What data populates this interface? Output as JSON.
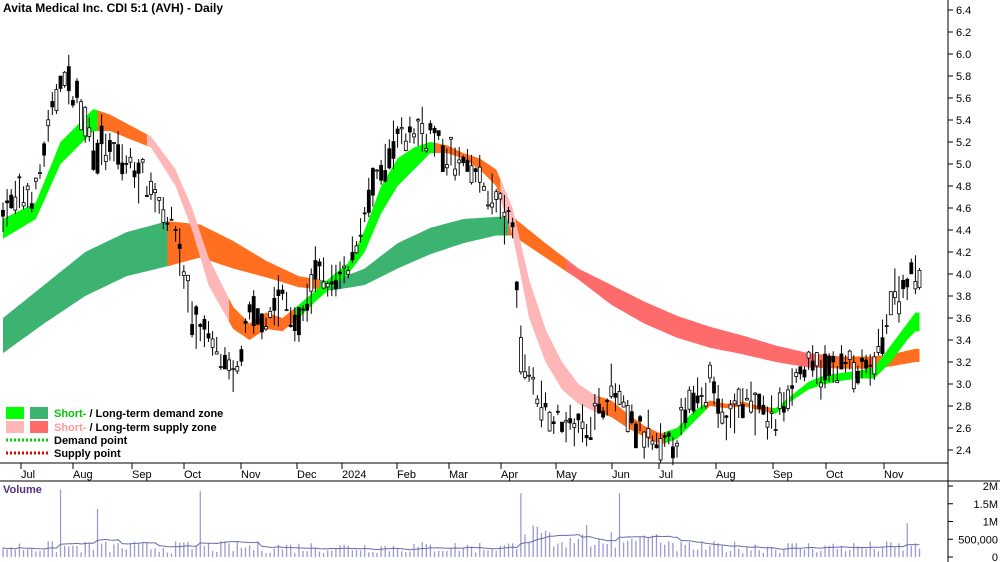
{
  "chart_data": {
    "type": "candlestick",
    "title": "Avita Medical Inc. CDI 5:1 (AVH) - Daily",
    "x_tick_labels": [
      "Jul",
      "Aug",
      "Sep",
      "Oct",
      "Nov",
      "Dec",
      "2024",
      "Feb",
      "Mar",
      "Apr",
      "May",
      "Jun",
      "Jul",
      "Aug",
      "Sep",
      "Oct",
      "Nov"
    ],
    "y_tick_labels": [
      "2.4",
      "2.6",
      "2.8",
      "3.0",
      "3.2",
      "3.4",
      "3.6",
      "3.8",
      "4.0",
      "4.2",
      "4.4",
      "4.6",
      "4.8",
      "5.0",
      "5.2",
      "5.4",
      "5.6",
      "5.8",
      "6.0",
      "6.2",
      "6.4"
    ],
    "ylim": [
      2.25,
      6.5
    ],
    "price_path": [
      {
        "i": 0,
        "p": 4.6
      },
      {
        "i": 8,
        "p": 4.75
      },
      {
        "i": 14,
        "p": 5.8
      },
      {
        "i": 18,
        "p": 5.6
      },
      {
        "i": 22,
        "p": 5.2
      },
      {
        "i": 28,
        "p": 5.05
      },
      {
        "i": 34,
        "p": 4.9
      },
      {
        "i": 38,
        "p": 4.65
      },
      {
        "i": 42,
        "p": 4.4
      },
      {
        "i": 46,
        "p": 3.6
      },
      {
        "i": 52,
        "p": 3.3
      },
      {
        "i": 56,
        "p": 3.0
      },
      {
        "i": 60,
        "p": 3.6
      },
      {
        "i": 64,
        "p": 3.6
      },
      {
        "i": 68,
        "p": 3.8
      },
      {
        "i": 72,
        "p": 3.5
      },
      {
        "i": 76,
        "p": 4.0
      },
      {
        "i": 80,
        "p": 3.9
      },
      {
        "i": 84,
        "p": 4.0
      },
      {
        "i": 88,
        "p": 4.6
      },
      {
        "i": 92,
        "p": 4.9
      },
      {
        "i": 96,
        "p": 5.2
      },
      {
        "i": 100,
        "p": 5.3
      },
      {
        "i": 104,
        "p": 5.3
      },
      {
        "i": 108,
        "p": 5.05
      },
      {
        "i": 112,
        "p": 5.0
      },
      {
        "i": 116,
        "p": 4.85
      },
      {
        "i": 120,
        "p": 4.65
      },
      {
        "i": 124,
        "p": 4.4
      },
      {
        "i": 126,
        "p": 3.3
      },
      {
        "i": 130,
        "p": 2.9
      },
      {
        "i": 134,
        "p": 2.7
      },
      {
        "i": 140,
        "p": 2.6
      },
      {
        "i": 144,
        "p": 2.7
      },
      {
        "i": 148,
        "p": 2.95
      },
      {
        "i": 152,
        "p": 2.7
      },
      {
        "i": 156,
        "p": 2.5
      },
      {
        "i": 160,
        "p": 2.4
      },
      {
        "i": 164,
        "p": 2.5
      },
      {
        "i": 168,
        "p": 2.9
      },
      {
        "i": 172,
        "p": 3.05
      },
      {
        "i": 176,
        "p": 2.6
      },
      {
        "i": 180,
        "p": 2.9
      },
      {
        "i": 184,
        "p": 2.75
      },
      {
        "i": 188,
        "p": 2.65
      },
      {
        "i": 192,
        "p": 3.05
      },
      {
        "i": 196,
        "p": 3.15
      },
      {
        "i": 200,
        "p": 3.1
      },
      {
        "i": 204,
        "p": 3.2
      },
      {
        "i": 208,
        "p": 3.1
      },
      {
        "i": 212,
        "p": 3.15
      },
      {
        "i": 216,
        "p": 3.75
      },
      {
        "i": 220,
        "p": 3.95
      },
      {
        "i": 222,
        "p": 4.05
      }
    ],
    "short_term_zone": [
      {
        "i": 0,
        "a": 4.32,
        "b": 4.5
      },
      {
        "i": 8,
        "a": 4.5,
        "b": 4.65
      },
      {
        "i": 14,
        "a": 5.0,
        "b": 5.2
      },
      {
        "i": 22,
        "a": 5.3,
        "b": 5.5
      },
      {
        "i": 26,
        "a": 5.3,
        "b": 5.45
      },
      {
        "i": 36,
        "a": 5.15,
        "b": 5.25
      },
      {
        "i": 42,
        "a": 4.8,
        "b": 4.95
      },
      {
        "i": 46,
        "a": 4.4,
        "b": 4.6
      },
      {
        "i": 50,
        "a": 3.9,
        "b": 4.15
      },
      {
        "i": 56,
        "a": 3.5,
        "b": 3.7
      },
      {
        "i": 60,
        "a": 3.4,
        "b": 3.55
      },
      {
        "i": 64,
        "a": 3.5,
        "b": 3.65
      },
      {
        "i": 68,
        "a": 3.48,
        "b": 3.6
      },
      {
        "i": 72,
        "a": 3.6,
        "b": 3.72
      },
      {
        "i": 76,
        "a": 3.75,
        "b": 3.85
      },
      {
        "i": 80,
        "a": 3.88,
        "b": 3.98
      },
      {
        "i": 84,
        "a": 4.0,
        "b": 4.1
      },
      {
        "i": 88,
        "a": 4.2,
        "b": 4.4
      },
      {
        "i": 92,
        "a": 4.55,
        "b": 4.8
      },
      {
        "i": 96,
        "a": 4.8,
        "b": 5.05
      },
      {
        "i": 100,
        "a": 4.95,
        "b": 5.15
      },
      {
        "i": 104,
        "a": 5.1,
        "b": 5.2
      },
      {
        "i": 108,
        "a": 5.1,
        "b": 5.17
      },
      {
        "i": 112,
        "a": 5.05,
        "b": 5.1
      },
      {
        "i": 116,
        "a": 4.95,
        "b": 5.05
      },
      {
        "i": 120,
        "a": 4.8,
        "b": 4.95
      },
      {
        "i": 124,
        "a": 4.35,
        "b": 4.6
      },
      {
        "i": 128,
        "a": 3.6,
        "b": 3.95
      },
      {
        "i": 132,
        "a": 3.2,
        "b": 3.5
      },
      {
        "i": 136,
        "a": 2.95,
        "b": 3.2
      },
      {
        "i": 140,
        "a": 2.82,
        "b": 3.0
      },
      {
        "i": 144,
        "a": 2.75,
        "b": 2.9
      },
      {
        "i": 148,
        "a": 2.7,
        "b": 2.85
      },
      {
        "i": 152,
        "a": 2.6,
        "b": 2.73
      },
      {
        "i": 156,
        "a": 2.52,
        "b": 2.62
      },
      {
        "i": 160,
        "a": 2.45,
        "b": 2.55
      },
      {
        "i": 164,
        "a": 2.5,
        "b": 2.6
      },
      {
        "i": 168,
        "a": 2.65,
        "b": 2.75
      },
      {
        "i": 172,
        "a": 2.8,
        "b": 2.85
      },
      {
        "i": 176,
        "a": 2.78,
        "b": 2.82
      },
      {
        "i": 180,
        "a": 2.8,
        "b": 2.84
      },
      {
        "i": 184,
        "a": 2.76,
        "b": 2.8
      },
      {
        "i": 188,
        "a": 2.73,
        "b": 2.78
      },
      {
        "i": 192,
        "a": 2.85,
        "b": 2.9
      },
      {
        "i": 196,
        "a": 2.95,
        "b": 3.02
      },
      {
        "i": 200,
        "a": 3.0,
        "b": 3.08
      },
      {
        "i": 204,
        "a": 3.03,
        "b": 3.1
      },
      {
        "i": 208,
        "a": 3.05,
        "b": 3.12
      },
      {
        "i": 212,
        "a": 3.05,
        "b": 3.15
      },
      {
        "i": 216,
        "a": 3.2,
        "b": 3.35
      },
      {
        "i": 220,
        "a": 3.4,
        "b": 3.55
      },
      {
        "i": 222,
        "a": 3.48,
        "b": 3.65
      }
    ],
    "long_term_zone": [
      {
        "i": 0,
        "a": 3.28,
        "b": 3.6
      },
      {
        "i": 10,
        "a": 3.55,
        "b": 3.9
      },
      {
        "i": 20,
        "a": 3.8,
        "b": 4.2
      },
      {
        "i": 30,
        "a": 3.98,
        "b": 4.38
      },
      {
        "i": 40,
        "a": 4.07,
        "b": 4.48
      },
      {
        "i": 48,
        "a": 4.15,
        "b": 4.45
      },
      {
        "i": 56,
        "a": 4.05,
        "b": 4.3
      },
      {
        "i": 64,
        "a": 3.97,
        "b": 4.12
      },
      {
        "i": 72,
        "a": 3.88,
        "b": 3.98
      },
      {
        "i": 80,
        "a": 3.85,
        "b": 3.93
      },
      {
        "i": 88,
        "a": 3.9,
        "b": 4.05
      },
      {
        "i": 96,
        "a": 4.05,
        "b": 4.28
      },
      {
        "i": 104,
        "a": 4.18,
        "b": 4.42
      },
      {
        "i": 112,
        "a": 4.28,
        "b": 4.5
      },
      {
        "i": 120,
        "a": 4.35,
        "b": 4.52
      },
      {
        "i": 124,
        "a": 4.35,
        "b": 4.52
      },
      {
        "i": 132,
        "a": 4.15,
        "b": 4.28
      },
      {
        "i": 140,
        "a": 3.95,
        "b": 4.05
      },
      {
        "i": 148,
        "a": 3.72,
        "b": 3.9
      },
      {
        "i": 156,
        "a": 3.55,
        "b": 3.75
      },
      {
        "i": 164,
        "a": 3.42,
        "b": 3.62
      },
      {
        "i": 172,
        "a": 3.33,
        "b": 3.52
      },
      {
        "i": 180,
        "a": 3.27,
        "b": 3.44
      },
      {
        "i": 188,
        "a": 3.2,
        "b": 3.35
      },
      {
        "i": 196,
        "a": 3.15,
        "b": 3.28
      },
      {
        "i": 204,
        "a": 3.14,
        "b": 3.25
      },
      {
        "i": 212,
        "a": 3.14,
        "b": 3.25
      },
      {
        "i": 216,
        "a": 3.16,
        "b": 3.27
      },
      {
        "i": 222,
        "a": 3.2,
        "b": 3.32
      }
    ],
    "volume": {
      "title": "Volume",
      "y_tick_labels": [
        "0",
        "500,000",
        "1M",
        "1.5M",
        "2M"
      ],
      "ylim": [
        0,
        2000000
      ],
      "spikes": [
        {
          "i": 14,
          "v": 1900000
        },
        {
          "i": 23,
          "v": 1350000
        },
        {
          "i": 48,
          "v": 1850000
        },
        {
          "i": 126,
          "v": 1800000
        },
        {
          "i": 150,
          "v": 1800000
        },
        {
          "i": 220,
          "v": 950000
        }
      ]
    }
  },
  "legend": {
    "demand_zone_short": "Short-",
    "demand_zone_rest": " / Long-term demand zone",
    "supply_zone_short": "Short-",
    "supply_zone_rest": " / Long-term supply zone",
    "demand_point": "Demand point",
    "supply_point": "Supply point"
  },
  "colors": {
    "short_demand": "#00ff00",
    "long_demand": "#3cb371",
    "short_supply": "#ffb6b6",
    "long_supply": "#ff6b6b",
    "orange_supply": "#ff6f1f",
    "demand_point": "#00d000",
    "supply_point": "#e00000",
    "volume_bar": "#9a9ad6",
    "volume_avg": "#6a6aaa"
  }
}
